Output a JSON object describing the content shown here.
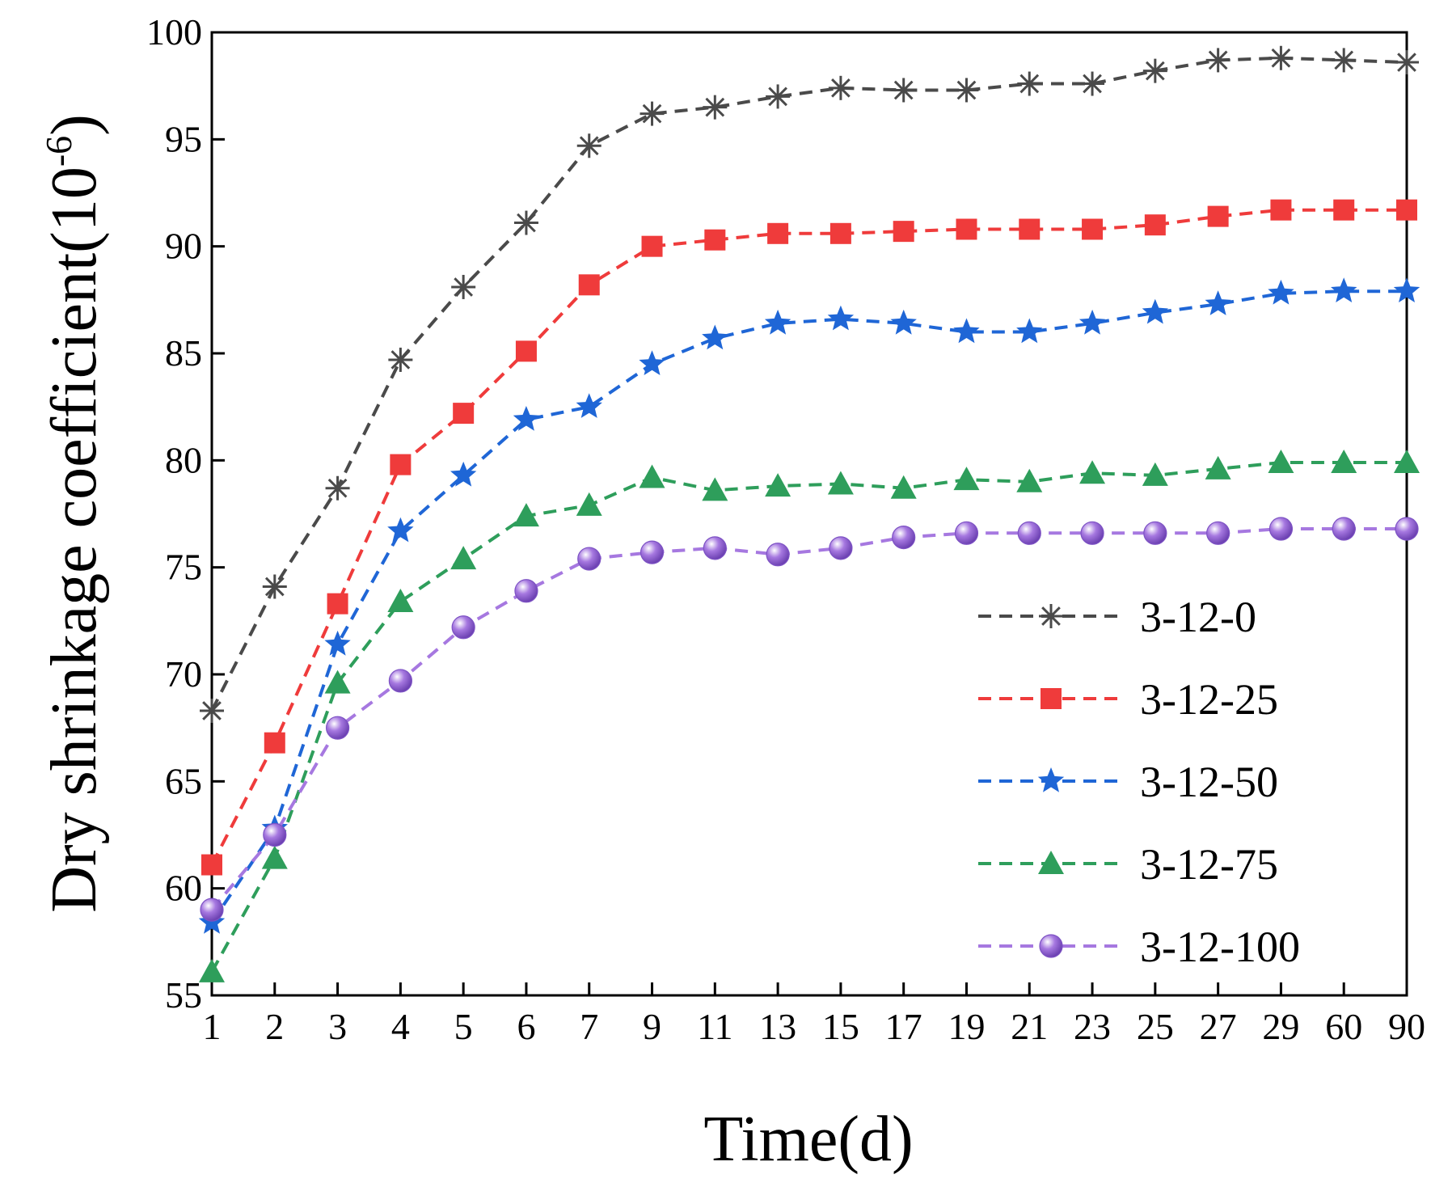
{
  "chart_data": {
    "type": "line",
    "title": "",
    "xlabel": "Time(d)",
    "ylabel": {
      "main": "Dry shrinkage coefficient(10",
      "sup": "-6",
      "close": ")"
    },
    "categories": [
      "1",
      "2",
      "3",
      "4",
      "5",
      "6",
      "7",
      "9",
      "11",
      "13",
      "15",
      "17",
      "19",
      "21",
      "23",
      "25",
      "27",
      "29",
      "60",
      "90"
    ],
    "ylim": [
      55,
      100
    ],
    "yticks": [
      55,
      60,
      65,
      70,
      75,
      80,
      85,
      90,
      95,
      100
    ],
    "legend_position": "bottom-right",
    "grid": false,
    "series": [
      {
        "name": "3-12-0",
        "color": "#4a4a4a",
        "marker": "asterisk",
        "values": [
          68.3,
          74.1,
          78.7,
          84.7,
          88.1,
          91.1,
          94.7,
          96.2,
          96.5,
          97.0,
          97.4,
          97.3,
          97.3,
          97.6,
          97.6,
          98.2,
          98.7,
          98.8,
          98.7,
          98.6
        ]
      },
      {
        "name": "3-12-25",
        "color": "#ef3b3b",
        "marker": "square",
        "values": [
          61.1,
          66.8,
          73.3,
          79.8,
          82.2,
          85.1,
          88.2,
          90.0,
          90.3,
          90.6,
          90.6,
          90.7,
          90.8,
          90.8,
          90.8,
          91.0,
          91.4,
          91.7,
          91.7,
          91.7
        ]
      },
      {
        "name": "3-12-50",
        "color": "#1f66d6",
        "marker": "star",
        "values": [
          58.4,
          62.8,
          71.4,
          76.7,
          79.3,
          81.9,
          82.5,
          84.5,
          85.7,
          86.4,
          86.6,
          86.4,
          86.0,
          86.0,
          86.4,
          86.9,
          87.3,
          87.8,
          87.9,
          87.9
        ]
      },
      {
        "name": "3-12-75",
        "color": "#2e9e5b",
        "marker": "triangle",
        "values": [
          56.1,
          61.4,
          69.6,
          73.4,
          75.4,
          77.4,
          77.9,
          79.2,
          78.6,
          78.8,
          78.9,
          78.7,
          79.1,
          79.0,
          79.4,
          79.3,
          79.6,
          79.9,
          79.9,
          79.9
        ]
      },
      {
        "name": "3-12-100",
        "color": "#a678e0",
        "marker": "sphere",
        "values": [
          59.0,
          62.5,
          67.5,
          69.7,
          72.2,
          73.9,
          75.4,
          75.7,
          75.9,
          75.6,
          75.9,
          76.4,
          76.6,
          76.6,
          76.6,
          76.6,
          76.6,
          76.8,
          76.8,
          76.8
        ]
      }
    ]
  }
}
